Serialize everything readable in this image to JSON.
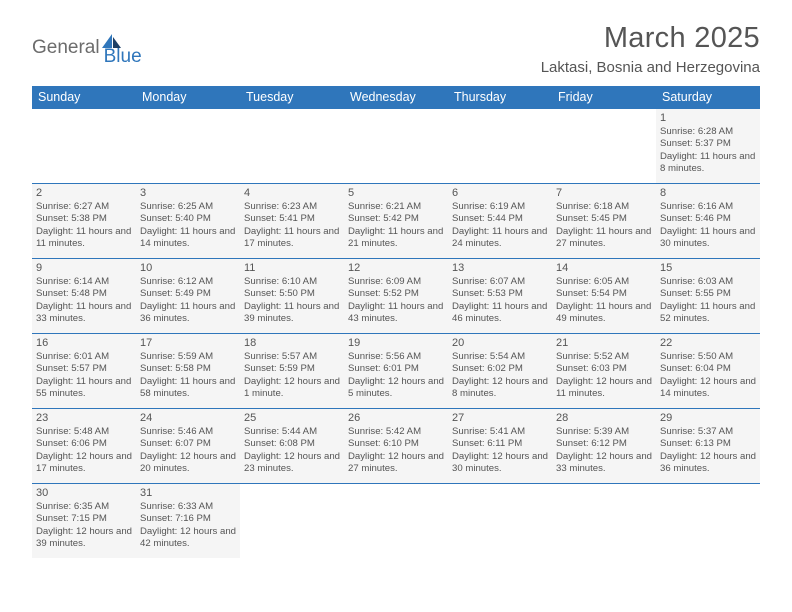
{
  "logo": {
    "part1": "General",
    "part2": "Blue"
  },
  "title": "March 2025",
  "location": "Laktasi, Bosnia and Herzegovina",
  "day_names": [
    "Sunday",
    "Monday",
    "Tuesday",
    "Wednesday",
    "Thursday",
    "Friday",
    "Saturday"
  ],
  "colors": {
    "header_bg": "#2f76bb",
    "text": "#555555",
    "cell_bg": "#f5f5f5"
  },
  "weeks": [
    [
      {
        "empty": true
      },
      {
        "empty": true
      },
      {
        "empty": true
      },
      {
        "empty": true
      },
      {
        "empty": true
      },
      {
        "empty": true
      },
      {
        "n": "1",
        "sunrise": "Sunrise: 6:28 AM",
        "sunset": "Sunset: 5:37 PM",
        "daylight": "Daylight: 11 hours and 8 minutes."
      }
    ],
    [
      {
        "n": "2",
        "sunrise": "Sunrise: 6:27 AM",
        "sunset": "Sunset: 5:38 PM",
        "daylight": "Daylight: 11 hours and 11 minutes."
      },
      {
        "n": "3",
        "sunrise": "Sunrise: 6:25 AM",
        "sunset": "Sunset: 5:40 PM",
        "daylight": "Daylight: 11 hours and 14 minutes."
      },
      {
        "n": "4",
        "sunrise": "Sunrise: 6:23 AM",
        "sunset": "Sunset: 5:41 PM",
        "daylight": "Daylight: 11 hours and 17 minutes."
      },
      {
        "n": "5",
        "sunrise": "Sunrise: 6:21 AM",
        "sunset": "Sunset: 5:42 PM",
        "daylight": "Daylight: 11 hours and 21 minutes."
      },
      {
        "n": "6",
        "sunrise": "Sunrise: 6:19 AM",
        "sunset": "Sunset: 5:44 PM",
        "daylight": "Daylight: 11 hours and 24 minutes."
      },
      {
        "n": "7",
        "sunrise": "Sunrise: 6:18 AM",
        "sunset": "Sunset: 5:45 PM",
        "daylight": "Daylight: 11 hours and 27 minutes."
      },
      {
        "n": "8",
        "sunrise": "Sunrise: 6:16 AM",
        "sunset": "Sunset: 5:46 PM",
        "daylight": "Daylight: 11 hours and 30 minutes."
      }
    ],
    [
      {
        "n": "9",
        "sunrise": "Sunrise: 6:14 AM",
        "sunset": "Sunset: 5:48 PM",
        "daylight": "Daylight: 11 hours and 33 minutes."
      },
      {
        "n": "10",
        "sunrise": "Sunrise: 6:12 AM",
        "sunset": "Sunset: 5:49 PM",
        "daylight": "Daylight: 11 hours and 36 minutes."
      },
      {
        "n": "11",
        "sunrise": "Sunrise: 6:10 AM",
        "sunset": "Sunset: 5:50 PM",
        "daylight": "Daylight: 11 hours and 39 minutes."
      },
      {
        "n": "12",
        "sunrise": "Sunrise: 6:09 AM",
        "sunset": "Sunset: 5:52 PM",
        "daylight": "Daylight: 11 hours and 43 minutes."
      },
      {
        "n": "13",
        "sunrise": "Sunrise: 6:07 AM",
        "sunset": "Sunset: 5:53 PM",
        "daylight": "Daylight: 11 hours and 46 minutes."
      },
      {
        "n": "14",
        "sunrise": "Sunrise: 6:05 AM",
        "sunset": "Sunset: 5:54 PM",
        "daylight": "Daylight: 11 hours and 49 minutes."
      },
      {
        "n": "15",
        "sunrise": "Sunrise: 6:03 AM",
        "sunset": "Sunset: 5:55 PM",
        "daylight": "Daylight: 11 hours and 52 minutes."
      }
    ],
    [
      {
        "n": "16",
        "sunrise": "Sunrise: 6:01 AM",
        "sunset": "Sunset: 5:57 PM",
        "daylight": "Daylight: 11 hours and 55 minutes."
      },
      {
        "n": "17",
        "sunrise": "Sunrise: 5:59 AM",
        "sunset": "Sunset: 5:58 PM",
        "daylight": "Daylight: 11 hours and 58 minutes."
      },
      {
        "n": "18",
        "sunrise": "Sunrise: 5:57 AM",
        "sunset": "Sunset: 5:59 PM",
        "daylight": "Daylight: 12 hours and 1 minute."
      },
      {
        "n": "19",
        "sunrise": "Sunrise: 5:56 AM",
        "sunset": "Sunset: 6:01 PM",
        "daylight": "Daylight: 12 hours and 5 minutes."
      },
      {
        "n": "20",
        "sunrise": "Sunrise: 5:54 AM",
        "sunset": "Sunset: 6:02 PM",
        "daylight": "Daylight: 12 hours and 8 minutes."
      },
      {
        "n": "21",
        "sunrise": "Sunrise: 5:52 AM",
        "sunset": "Sunset: 6:03 PM",
        "daylight": "Daylight: 12 hours and 11 minutes."
      },
      {
        "n": "22",
        "sunrise": "Sunrise: 5:50 AM",
        "sunset": "Sunset: 6:04 PM",
        "daylight": "Daylight: 12 hours and 14 minutes."
      }
    ],
    [
      {
        "n": "23",
        "sunrise": "Sunrise: 5:48 AM",
        "sunset": "Sunset: 6:06 PM",
        "daylight": "Daylight: 12 hours and 17 minutes."
      },
      {
        "n": "24",
        "sunrise": "Sunrise: 5:46 AM",
        "sunset": "Sunset: 6:07 PM",
        "daylight": "Daylight: 12 hours and 20 minutes."
      },
      {
        "n": "25",
        "sunrise": "Sunrise: 5:44 AM",
        "sunset": "Sunset: 6:08 PM",
        "daylight": "Daylight: 12 hours and 23 minutes."
      },
      {
        "n": "26",
        "sunrise": "Sunrise: 5:42 AM",
        "sunset": "Sunset: 6:10 PM",
        "daylight": "Daylight: 12 hours and 27 minutes."
      },
      {
        "n": "27",
        "sunrise": "Sunrise: 5:41 AM",
        "sunset": "Sunset: 6:11 PM",
        "daylight": "Daylight: 12 hours and 30 minutes."
      },
      {
        "n": "28",
        "sunrise": "Sunrise: 5:39 AM",
        "sunset": "Sunset: 6:12 PM",
        "daylight": "Daylight: 12 hours and 33 minutes."
      },
      {
        "n": "29",
        "sunrise": "Sunrise: 5:37 AM",
        "sunset": "Sunset: 6:13 PM",
        "daylight": "Daylight: 12 hours and 36 minutes."
      }
    ],
    [
      {
        "n": "30",
        "sunrise": "Sunrise: 6:35 AM",
        "sunset": "Sunset: 7:15 PM",
        "daylight": "Daylight: 12 hours and 39 minutes."
      },
      {
        "n": "31",
        "sunrise": "Sunrise: 6:33 AM",
        "sunset": "Sunset: 7:16 PM",
        "daylight": "Daylight: 12 hours and 42 minutes."
      },
      {
        "empty": true
      },
      {
        "empty": true
      },
      {
        "empty": true
      },
      {
        "empty": true
      },
      {
        "empty": true
      }
    ]
  ]
}
